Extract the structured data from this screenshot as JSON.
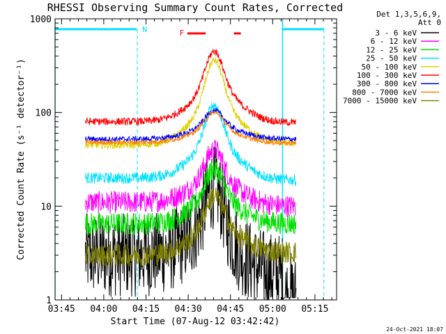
{
  "chart_data": {
    "type": "line",
    "title": "RHESSI Observing Summary Count Rates, Corrected",
    "xlabel": "Start Time (07-Aug-12 03:42:42)",
    "ylabel": "Corrected Count Rate (s⁻¹ detector⁻¹)",
    "yscale": "log",
    "ylim": [
      1,
      1000
    ],
    "xlim_minutes_after_0342": [
      0,
      100
    ],
    "x_tick_labels": [
      "03:45",
      "04:00",
      "04:15",
      "04:30",
      "04:45",
      "05:00",
      "05:15"
    ],
    "y_tick_labels": [
      "1",
      "10",
      "100",
      "1000"
    ],
    "legend_header": [
      "Det 1,3,5,6,9,",
      "Att 0"
    ],
    "timestamp": "24-Oct-2021 18:07",
    "annotations": {
      "night_marker": "N",
      "flare_marker": "F"
    },
    "series": [
      {
        "name": "3 - 6 keV",
        "color": "#000000",
        "pre": 3.0,
        "peak": 16,
        "post": 1.8,
        "noise": 0.45
      },
      {
        "name": "6 - 12 keV",
        "color": "#ff00ff",
        "pre": 11,
        "peak": 40,
        "post": 10,
        "noise": 0.12
      },
      {
        "name": "12 - 25 keV",
        "color": "#00e000",
        "pre": 6.5,
        "peak": 25,
        "post": 6.5,
        "noise": 0.12
      },
      {
        "name": "25 - 50 keV",
        "color": "#00e0ff",
        "pre": 20,
        "peak": 120,
        "post": 19,
        "noise": 0.06
      },
      {
        "name": "50 - 100 keV",
        "color": "#e0d000",
        "pre": 45,
        "peak": 360,
        "post": 47,
        "noise": 0.04
      },
      {
        "name": "100 - 300 keV",
        "color": "#ff0000",
        "pre": 80,
        "peak": 450,
        "post": 78,
        "noise": 0.04
      },
      {
        "name": "300 - 800 keV",
        "color": "#0000ff",
        "pre": 52,
        "peak": 105,
        "post": 52,
        "noise": 0.03
      },
      {
        "name": "800 - 7000 keV",
        "color": "#ff8000",
        "pre": 48,
        "peak": 100,
        "post": 47,
        "noise": 0.025
      },
      {
        "name": "7000 - 15000 keV",
        "color": "#808000",
        "pre": 3.0,
        "peak": 13,
        "post": 3.2,
        "noise": 0.12
      }
    ]
  }
}
